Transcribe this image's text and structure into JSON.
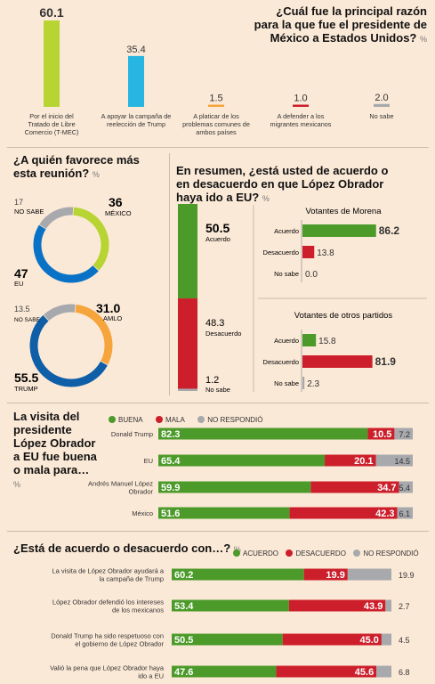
{
  "colors": {
    "green": "#4c9a2a",
    "red": "#cc1f2b",
    "gray": "#a7a9ac",
    "lime": "#b8d432",
    "cyan": "#27b5e1",
    "orange": "#f5a53b",
    "blue": "#0a72c6",
    "darkblue": "#0f5ea8"
  },
  "chart_data": [
    {
      "type": "bar",
      "id": "reason",
      "title": "¿Cuál fue la principal razón para la que fue el presidente de México a Estados Unidos?",
      "unit": "%",
      "categories": [
        "Por el inicio del Tratado de Libre Comercio (T-MEC)",
        "A apoyar la campaña de reelección de Trump",
        "A platicar de los problemas comunes de ambos países",
        "A defender a los migrantes mexicanos",
        "No sabe"
      ],
      "values": [
        60.1,
        35.4,
        1.5,
        1.0,
        2.0
      ],
      "value_labels": [
        "60.1",
        "35.4",
        "1.5",
        "1.0",
        "2.0"
      ]
    },
    {
      "type": "pie",
      "id": "favors-eu",
      "title": "¿A quién favorece más esta reunión?",
      "unit": "%",
      "slices": [
        {
          "label": "MÉXICO",
          "value": 36,
          "text": "36"
        },
        {
          "label": "EU",
          "value": 47,
          "text": "47"
        },
        {
          "label": "NO SABE",
          "value": 17,
          "text": "17"
        }
      ]
    },
    {
      "type": "pie",
      "id": "favors-person",
      "slices": [
        {
          "label": "AMLO",
          "value": 31.0,
          "text": "31.0"
        },
        {
          "label": "TRUMP",
          "value": 55.5,
          "text": "55.5"
        },
        {
          "label": "NO SABE",
          "value": 13.5,
          "text": "13.5"
        }
      ]
    },
    {
      "type": "bar",
      "id": "agree-total",
      "title": "En resumen, ¿está usted de acuerdo o en desacuerdo en que López Obrador haya ido a EU?",
      "unit": "%",
      "categories": [
        "Acuerdo",
        "Desacuerdo",
        "No sabe"
      ],
      "values": [
        50.5,
        48.3,
        1.2
      ],
      "value_labels": [
        "50.5",
        "48.3",
        "1.2"
      ]
    },
    {
      "type": "bar",
      "id": "morena",
      "title": "Votantes de Morena",
      "categories": [
        "Acuerdo",
        "Desacuerdo",
        "No sabe"
      ],
      "values": [
        86.2,
        13.8,
        0.0
      ],
      "value_labels": [
        "86.2",
        "13.8",
        "0.0"
      ]
    },
    {
      "type": "bar",
      "id": "others",
      "title": "Votantes de otros partidos",
      "categories": [
        "Acuerdo",
        "Desacuerdo",
        "No sabe"
      ],
      "values": [
        15.8,
        81.9,
        2.3
      ],
      "value_labels": [
        "15.8",
        "81.9",
        "2.3"
      ]
    },
    {
      "type": "bar",
      "id": "visit-good-bad",
      "title": "La visita del presidente López Obrador a EU fue buena o mala para…",
      "unit": "%",
      "legend": [
        "BUENA",
        "MALA",
        "NO RESPONDIÓ"
      ],
      "categories": [
        "Donald Trump",
        "EU",
        "Andrés Manuel López Obrador",
        "México"
      ],
      "series": [
        {
          "name": "BUENA",
          "values": [
            82.3,
            65.4,
            59.9,
            51.6
          ]
        },
        {
          "name": "MALA",
          "values": [
            10.5,
            20.1,
            34.7,
            42.3
          ]
        },
        {
          "name": "NO RESPONDIÓ",
          "values": [
            7.2,
            14.5,
            5.4,
            6.1
          ]
        }
      ],
      "labels": [
        [
          "82.3",
          "10.5",
          "7.2"
        ],
        [
          "65.4",
          "20.1",
          "14.5"
        ],
        [
          "59.9",
          "34.7",
          "5.4"
        ],
        [
          "51.6",
          "42.3",
          "6.1"
        ]
      ]
    },
    {
      "type": "bar",
      "id": "agree-with",
      "title": "¿Está de acuerdo o desacuerdo con…?",
      "unit": "%",
      "legend": [
        "ACUERDO",
        "DESACUERDO",
        "NO RESPONDIÓ"
      ],
      "categories": [
        "La visita de López Obrador ayudará a la campaña de Trump",
        "López Obrador defendió los intereses de los mexicanos",
        "Donald Trump ha sido respetuoso con el gobierno de López Obrador",
        "Valió la pena que López Obrador haya ido a EU"
      ],
      "series": [
        {
          "name": "ACUERDO",
          "values": [
            60.2,
            53.4,
            50.5,
            47.6
          ]
        },
        {
          "name": "DESACUERDO",
          "values": [
            19.9,
            43.9,
            45.0,
            45.6
          ]
        },
        {
          "name": "NO RESPONDIÓ",
          "values": [
            19.9,
            2.7,
            4.5,
            6.8
          ]
        }
      ],
      "labels": [
        [
          "60.2",
          "19.9",
          "19.9"
        ],
        [
          "53.4",
          "43.9",
          "2.7"
        ],
        [
          "50.5",
          "45.0",
          "4.5"
        ],
        [
          "47.6",
          "45.6",
          "6.8"
        ]
      ]
    }
  ]
}
